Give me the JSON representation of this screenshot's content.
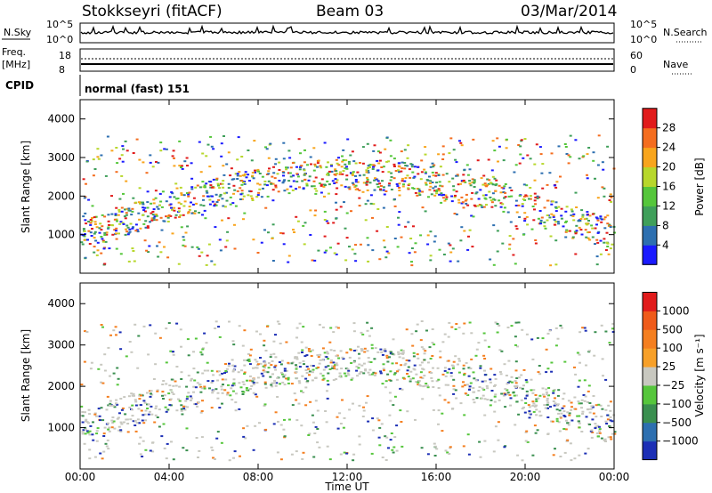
{
  "header": {
    "station": "Stokkseyri (fitACF)",
    "beam": "Beam 03",
    "date": "03/Mar/2014"
  },
  "noise_panel": {
    "left_label": "N.Sky",
    "left_ticks": [
      "10^5",
      "10^0"
    ],
    "right_ticks": [
      "10^5",
      "10^0"
    ],
    "right_label": "N.Search"
  },
  "freq_panel": {
    "left_label_1": "Freq.",
    "left_label_2": "[MHz]",
    "left_ticks": [
      "18",
      "8"
    ],
    "right_ticks": [
      "60",
      "0"
    ],
    "right_label": "Nave"
  },
  "cpid": {
    "label": "CPID",
    "value": "normal (fast) 151"
  },
  "chart_data": [
    {
      "type": "heatmap",
      "quantity": "Power",
      "ylabel": "Slant Range [km]",
      "xlabel": "Time UT",
      "ylim": [
        0,
        4500
      ],
      "yticks": [
        "1000",
        "2000",
        "3000",
        "4000"
      ],
      "xticks": [
        "00:00",
        "04:00",
        "08:00",
        "12:00",
        "16:00",
        "20:00",
        "00:00"
      ],
      "colorbar_label": "Power [dB]",
      "colorbar_ticks": [
        "4",
        "8",
        "12",
        "16",
        "20",
        "24",
        "28"
      ],
      "colorbar_colors": [
        "#1a1aff",
        "#2d6fb0",
        "#3f9f5a",
        "#55c63b",
        "#b7d72c",
        "#f8a51d",
        "#f46d1f",
        "#e11b1b"
      ]
    },
    {
      "type": "heatmap",
      "quantity": "Velocity",
      "ylabel": "Slant Range [km]",
      "xlabel": "Time UT",
      "ylim": [
        0,
        4500
      ],
      "yticks": [
        "1000",
        "2000",
        "3000",
        "4000"
      ],
      "xticks": [
        "00:00",
        "04:00",
        "08:00",
        "12:00",
        "16:00",
        "20:00",
        "00:00"
      ],
      "colorbar_label": "Velocity [m s⁻¹]",
      "colorbar_ticks": [
        "1000",
        "500",
        "100",
        "25",
        "−25",
        "−100",
        "−500",
        "−1000"
      ],
      "colorbar_colors": [
        "#1c2fb5",
        "#2d6fb0",
        "#3a8f4f",
        "#56c63c",
        "#c8c8c0",
        "#f7a029",
        "#f47f20",
        "#ef5b1a",
        "#e11b1b"
      ]
    }
  ],
  "time_axis_title": "Time UT"
}
